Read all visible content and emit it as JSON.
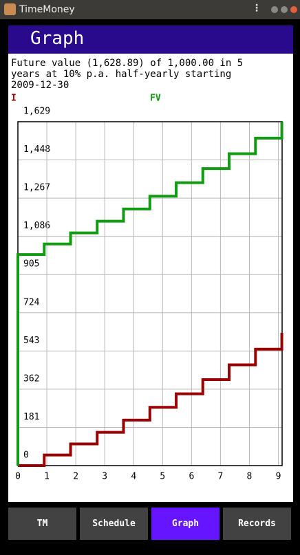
{
  "window": {
    "title": "TimeMoney"
  },
  "header": {
    "title": "Graph"
  },
  "description": "Future value (1,628.89) of 1,000.00 in 5 years at 10% p.a. half-yearly starting 2009-12-30",
  "chart_data": {
    "type": "step",
    "x": [
      0,
      0.91,
      1.82,
      2.74,
      3.65,
      4.56,
      5.47,
      6.39,
      7.3,
      8.21,
      9.12
    ],
    "series": [
      {
        "name": "I",
        "color": "#990000",
        "values": [
          0,
          50,
          102.5,
          157.63,
          215.51,
          276.28,
          340.1,
          407.1,
          477.46,
          551.33,
          628.89
        ]
      },
      {
        "name": "FV",
        "color": "#129a12",
        "values": [
          1000,
          1050,
          1102.5,
          1157.63,
          1215.51,
          1276.28,
          1340.1,
          1407.1,
          1477.46,
          1551.33,
          1628.89
        ]
      }
    ],
    "xlim": [
      0,
      9.13
    ],
    "ylim": [
      0,
      1629
    ],
    "xticks": [
      0,
      1,
      2,
      3,
      4,
      5,
      6,
      7,
      8,
      9
    ],
    "yticks": [
      0,
      181,
      362,
      543,
      724,
      905,
      {
        "value": 1086,
        "label": "1,086"
      },
      {
        "value": 1267,
        "label": "1,267"
      },
      {
        "value": 1448,
        "label": "1,448"
      },
      {
        "value": 1629,
        "label": "1,629"
      }
    ],
    "grid": true
  },
  "tabs": [
    "TM",
    "Schedule",
    "Graph",
    "Records"
  ],
  "selected_tab": 2
}
